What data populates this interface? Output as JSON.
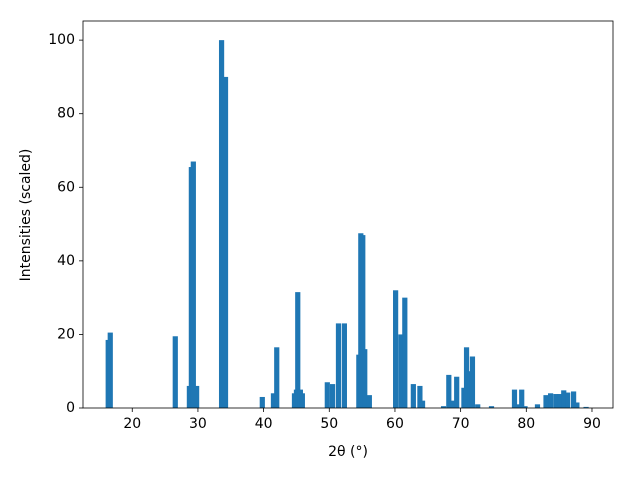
{
  "chart_data": {
    "type": "bar",
    "xlabel": "2θ (°)",
    "ylabel": "Intensities (scaled)",
    "x": [
      16.34,
      16.65,
      26.55,
      28.7,
      29.0,
      29.3,
      29.8,
      33.6,
      34.2,
      39.8,
      41.5,
      42.0,
      44.7,
      45.0,
      45.2,
      45.6,
      45.9,
      49.7,
      50.5,
      51.4,
      52.3,
      54.5,
      54.8,
      55.1,
      55.4,
      56.1,
      60.1,
      60.9,
      61.5,
      62.8,
      63.8,
      64.2,
      67.4,
      68.2,
      68.9,
      69.4,
      70.5,
      70.9,
      71.4,
      71.8,
      72.6,
      74.7,
      78.2,
      78.8,
      79.3,
      79.8,
      81.7,
      83.0,
      83.7,
      84.5,
      85.1,
      85.7,
      86.3,
      87.2,
      87.7,
      89.1
    ],
    "values": [
      18.5,
      20.5,
      19.5,
      6,
      65.5,
      67,
      6,
      100,
      90,
      3,
      4,
      16.5,
      4,
      5,
      31.5,
      5,
      4,
      7,
      6.5,
      23,
      23,
      14.5,
      47.5,
      47,
      16,
      3.5,
      32,
      20,
      30,
      6.5,
      6,
      2,
      0.5,
      9,
      2,
      8.5,
      5.5,
      16.5,
      10,
      14,
      1,
      0.5,
      5,
      1,
      5,
      0.5,
      1,
      3.5,
      4,
      3.8,
      3.8,
      4.8,
      4.2,
      4.5,
      1.5,
      0.3
    ],
    "color": "#1f77b4",
    "xlim": [
      12.5,
      93.2
    ],
    "ylim": [
      0,
      105.2
    ],
    "xticks": [
      20,
      30,
      40,
      50,
      60,
      70,
      80,
      90
    ],
    "yticks": [
      0,
      20,
      40,
      60,
      80,
      100
    ],
    "grid": false
  }
}
